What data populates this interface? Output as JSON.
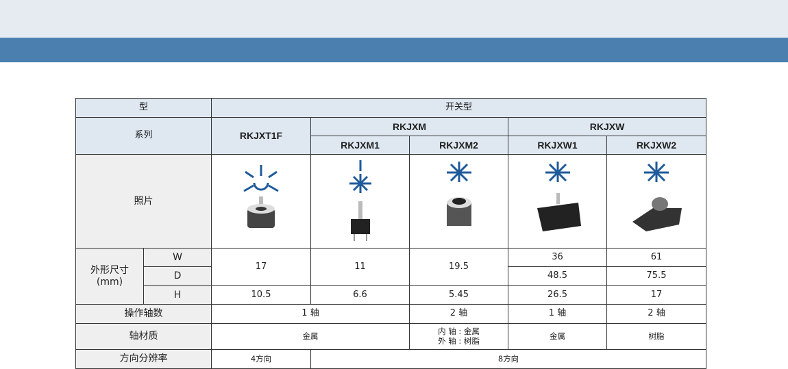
{
  "colors": {
    "band_light": "#e5ebf1",
    "band_dark": "#4a7fb0",
    "header_bg": "#dfe8f1",
    "label_bg": "#efefef",
    "arrow": "#1f5a9a"
  },
  "labels": {
    "type": "型",
    "series": "系列",
    "photo": "照片",
    "dims": "外形尺寸",
    "dims_unit": "(mm)",
    "w": "W",
    "d": "D",
    "h": "H",
    "axes": "操作轴数",
    "material": "轴材质",
    "resolution": "方向分辨率"
  },
  "type_value": "开关型",
  "groups": {
    "rkjxm": "RKJXM",
    "rkjxw": "RKJXW"
  },
  "models": [
    "RKJXT1F",
    "RKJXM1",
    "RKJXM2",
    "RKJXW1",
    "RKJXW2"
  ],
  "icons": [
    "rotate-push-4way-icon",
    "push-8way-icon",
    "8way-push-icon",
    "8way-push-icon",
    "8way-push-icon"
  ],
  "dims": {
    "w": [
      "17",
      "11",
      "19.5",
      "36",
      "61"
    ],
    "d": [
      "48.5",
      "75.5"
    ],
    "h": [
      "10.5",
      "6.6",
      "5.45",
      "26.5",
      "17"
    ]
  },
  "axes": [
    "1 轴",
    "2 轴",
    "1 轴",
    "2 轴"
  ],
  "material": [
    "金属",
    "内 轴 : 金属",
    "外 轴 : 树脂",
    "金属",
    "树脂"
  ],
  "resolution": [
    "4方向",
    "8方向"
  ]
}
